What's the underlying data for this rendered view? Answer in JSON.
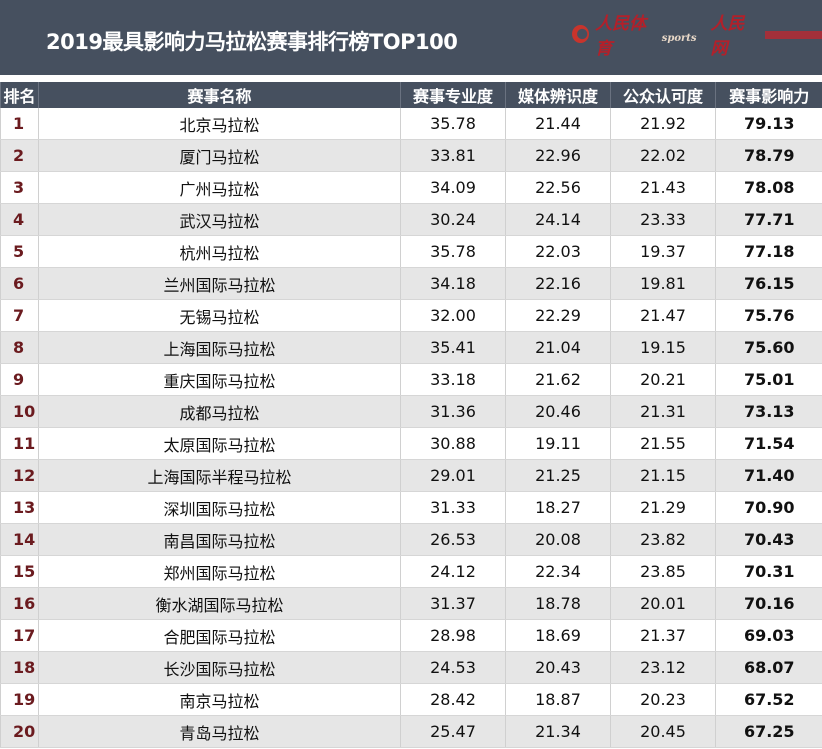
{
  "title": "2019最具影响力马拉松赛事排行榜TOP100",
  "logo": {
    "text1": "人民体育",
    "text2": "sports",
    "text3": "人民网"
  },
  "colors": {
    "header_bg": "#46505f",
    "rank": "#6b1b1f",
    "alt_row": "#e6e6e6"
  },
  "headers": [
    "排名",
    "赛事名称",
    "赛事专业度",
    "媒体辨识度",
    "公众认可度",
    "赛事影响力"
  ],
  "rows": [
    [
      "1",
      "北京马拉松",
      "35.78",
      "21.44",
      "21.92",
      "79.13"
    ],
    [
      "2",
      "厦门马拉松",
      "33.81",
      "22.96",
      "22.02",
      "78.79"
    ],
    [
      "3",
      "广州马拉松",
      "34.09",
      "22.56",
      "21.43",
      "78.08"
    ],
    [
      "4",
      "武汉马拉松",
      "30.24",
      "24.14",
      "23.33",
      "77.71"
    ],
    [
      "5",
      "杭州马拉松",
      "35.78",
      "22.03",
      "19.37",
      "77.18"
    ],
    [
      "6",
      "兰州国际马拉松",
      "34.18",
      "22.16",
      "19.81",
      "76.15"
    ],
    [
      "7",
      "无锡马拉松",
      "32.00",
      "22.29",
      "21.47",
      "75.76"
    ],
    [
      "8",
      "上海国际马拉松",
      "35.41",
      "21.04",
      "19.15",
      "75.60"
    ],
    [
      "9",
      "重庆国际马拉松",
      "33.18",
      "21.62",
      "20.21",
      "75.01"
    ],
    [
      "10",
      "成都马拉松",
      "31.36",
      "20.46",
      "21.31",
      "73.13"
    ],
    [
      "11",
      "太原国际马拉松",
      "30.88",
      "19.11",
      "21.55",
      "71.54"
    ],
    [
      "12",
      "上海国际半程马拉松",
      "29.01",
      "21.25",
      "21.15",
      "71.40"
    ],
    [
      "13",
      "深圳国际马拉松",
      "31.33",
      "18.27",
      "21.29",
      "70.90"
    ],
    [
      "14",
      "南昌国际马拉松",
      "26.53",
      "20.08",
      "23.82",
      "70.43"
    ],
    [
      "15",
      "郑州国际马拉松",
      "24.12",
      "22.34",
      "23.85",
      "70.31"
    ],
    [
      "16",
      "衡水湖国际马拉松",
      "31.37",
      "18.78",
      "20.01",
      "70.16"
    ],
    [
      "17",
      "合肥国际马拉松",
      "28.98",
      "18.69",
      "21.37",
      "69.03"
    ],
    [
      "18",
      "长沙国际马拉松",
      "24.53",
      "20.43",
      "23.12",
      "68.07"
    ],
    [
      "19",
      "南京马拉松",
      "28.42",
      "18.87",
      "20.23",
      "67.52"
    ],
    [
      "20",
      "青岛马拉松",
      "25.47",
      "21.34",
      "20.45",
      "67.25"
    ]
  ]
}
